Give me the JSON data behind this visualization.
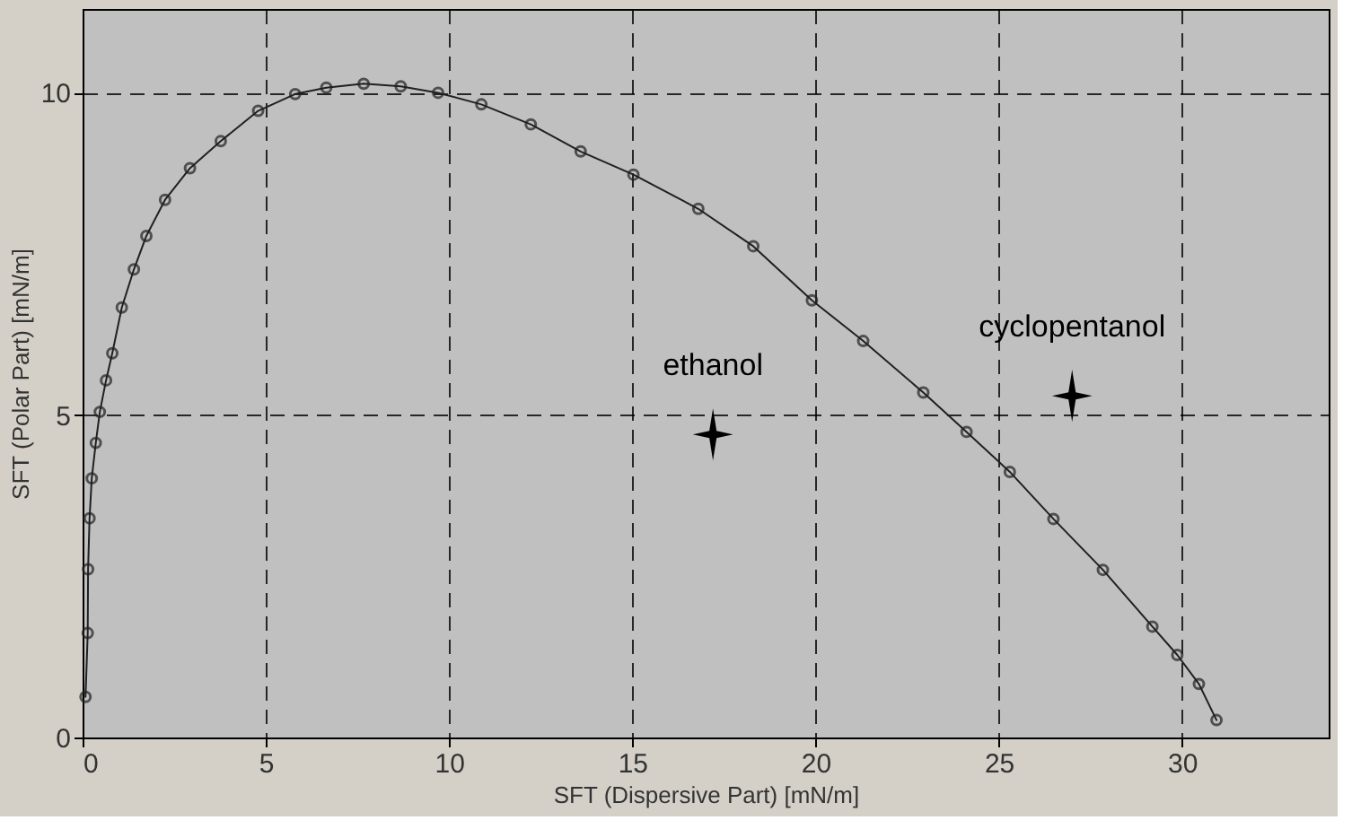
{
  "chart_data": {
    "type": "line",
    "xlabel": "SFT (Dispersive Part) [mN/m]",
    "ylabel": "SFT (Polar Part) [mN/m]",
    "xlim": [
      0,
      34
    ],
    "ylim": [
      0,
      11.3
    ],
    "xticks": [
      0,
      5,
      10,
      15,
      20,
      25,
      30
    ],
    "yticks": [
      0,
      5,
      10
    ],
    "grid": true,
    "series": [
      {
        "color": "#202020",
        "marker": "circle",
        "x": [
          0.08,
          0.14,
          0.15,
          0.19,
          0.25,
          0.36,
          0.47,
          0.64,
          0.81,
          1.07,
          1.4,
          1.74,
          2.25,
          2.93,
          3.77,
          4.79,
          5.8,
          6.65,
          7.67,
          8.68,
          9.7,
          10.88,
          12.23,
          13.59,
          15.03,
          16.8,
          18.3,
          19.9,
          21.3,
          22.94,
          24.12,
          25.3,
          26.49,
          27.84,
          29.19,
          29.87,
          30.46,
          30.94
        ],
        "values": [
          0.63,
          1.62,
          2.61,
          3.4,
          4.02,
          4.57,
          5.05,
          5.54,
          5.96,
          6.67,
          7.26,
          7.78,
          8.34,
          8.83,
          9.25,
          9.72,
          9.98,
          10.08,
          10.14,
          10.1,
          10.0,
          9.82,
          9.51,
          9.09,
          8.73,
          8.2,
          7.62,
          6.78,
          6.15,
          5.35,
          4.74,
          4.12,
          3.39,
          2.6,
          1.72,
          1.28,
          0.83,
          0.27
        ]
      },
      {
        "type": "scatter",
        "color": "#000000",
        "marker": "star",
        "x": [
          17.2,
          27.0
        ],
        "values": [
          4.7,
          5.3
        ]
      }
    ],
    "annotations": [
      {
        "text": "ethanol",
        "x": 17.2,
        "y": 4.7
      },
      {
        "text": "cyclopentanol",
        "x": 27.0,
        "y": 5.3
      }
    ]
  }
}
